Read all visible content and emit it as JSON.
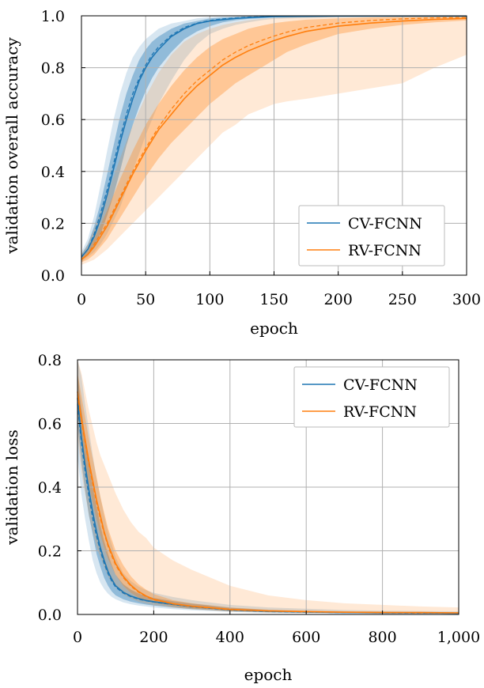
{
  "colors": {
    "cv": "#1f77b4",
    "rv": "#ff7f0e",
    "grid": "#b0b0b0"
  },
  "chart_data": [
    {
      "type": "line",
      "xlabel": "epoch",
      "ylabel": "validation overall accuracy",
      "xlim": [
        0,
        300
      ],
      "ylim": [
        0,
        1.0
      ],
      "xticks": [
        0,
        50,
        100,
        150,
        200,
        250,
        300
      ],
      "yticks": [
        0.0,
        0.2,
        0.4,
        0.6,
        0.8,
        1.0
      ],
      "xtick_labels": [
        "0",
        "50",
        "100",
        "150",
        "200",
        "250",
        "300"
      ],
      "ytick_labels": [
        "0.0",
        "0.2",
        "0.4",
        "0.6",
        "0.8",
        "1.0"
      ],
      "grid": true,
      "legend_position": "bottom-right",
      "series": [
        {
          "name": "CV-FCNN",
          "color": "#1f77b4",
          "x": [
            0,
            5,
            10,
            15,
            20,
            25,
            30,
            35,
            40,
            45,
            50,
            55,
            60,
            70,
            80,
            90,
            100,
            110,
            120,
            130,
            140,
            150,
            175,
            200,
            250,
            300
          ],
          "y": [
            0.07,
            0.1,
            0.15,
            0.22,
            0.31,
            0.41,
            0.51,
            0.6,
            0.68,
            0.75,
            0.8,
            0.84,
            0.87,
            0.92,
            0.95,
            0.97,
            0.98,
            0.985,
            0.99,
            0.993,
            0.995,
            0.997,
            0.998,
            0.999,
            0.999,
            0.999
          ],
          "std_lower": [
            0.06,
            0.08,
            0.11,
            0.16,
            0.23,
            0.31,
            0.4,
            0.5,
            0.58,
            0.65,
            0.71,
            0.76,
            0.8,
            0.86,
            0.91,
            0.94,
            0.96,
            0.975,
            0.983,
            0.988,
            0.991,
            0.994,
            0.996,
            0.997,
            0.998,
            0.998
          ],
          "std_upper": [
            0.08,
            0.12,
            0.19,
            0.28,
            0.39,
            0.5,
            0.61,
            0.7,
            0.77,
            0.83,
            0.87,
            0.9,
            0.92,
            0.95,
            0.97,
            0.98,
            0.99,
            0.993,
            0.995,
            0.997,
            0.998,
            0.999,
            0.999,
            1.0,
            1.0,
            1.0
          ],
          "min": [
            0.05,
            0.07,
            0.09,
            0.12,
            0.16,
            0.21,
            0.26,
            0.33,
            0.4,
            0.47,
            0.54,
            0.6,
            0.66,
            0.75,
            0.83,
            0.89,
            0.93,
            0.95,
            0.965,
            0.975,
            0.983,
            0.988,
            0.992,
            0.995,
            0.997,
            0.997
          ],
          "max": [
            0.09,
            0.14,
            0.23,
            0.35,
            0.48,
            0.6,
            0.7,
            0.78,
            0.84,
            0.88,
            0.91,
            0.93,
            0.95,
            0.97,
            0.98,
            0.99,
            0.995,
            0.997,
            0.998,
            0.999,
            1.0,
            1.0,
            1.0,
            1.0,
            1.0,
            1.0
          ],
          "dashed": [
            0.07,
            0.1,
            0.16,
            0.24,
            0.33,
            0.43,
            0.53,
            0.62,
            0.7,
            0.76,
            0.81,
            0.85,
            0.88,
            0.925,
            0.955,
            0.972,
            0.982,
            0.988,
            0.992,
            0.995,
            0.996,
            0.998,
            0.999,
            0.999,
            0.999,
            0.999
          ]
        },
        {
          "name": "RV-FCNN",
          "color": "#ff7f0e",
          "x": [
            0,
            5,
            10,
            20,
            30,
            40,
            50,
            60,
            70,
            80,
            90,
            100,
            110,
            120,
            130,
            140,
            150,
            160,
            175,
            200,
            225,
            250,
            275,
            300
          ],
          "y": [
            0.06,
            0.08,
            0.11,
            0.19,
            0.29,
            0.39,
            0.48,
            0.56,
            0.62,
            0.68,
            0.73,
            0.77,
            0.81,
            0.84,
            0.865,
            0.885,
            0.905,
            0.92,
            0.94,
            0.96,
            0.972,
            0.98,
            0.986,
            0.99
          ],
          "std_lower": [
            0.05,
            0.06,
            0.08,
            0.14,
            0.22,
            0.3,
            0.38,
            0.45,
            0.51,
            0.56,
            0.61,
            0.66,
            0.7,
            0.74,
            0.77,
            0.8,
            0.83,
            0.86,
            0.89,
            0.93,
            0.95,
            0.965,
            0.975,
            0.982
          ],
          "std_upper": [
            0.07,
            0.1,
            0.14,
            0.25,
            0.37,
            0.48,
            0.58,
            0.66,
            0.73,
            0.79,
            0.84,
            0.88,
            0.91,
            0.93,
            0.95,
            0.962,
            0.972,
            0.978,
            0.985,
            0.99,
            0.994,
            0.996,
            0.997,
            0.998
          ],
          "min": [
            0.04,
            0.05,
            0.06,
            0.1,
            0.15,
            0.2,
            0.25,
            0.3,
            0.35,
            0.4,
            0.45,
            0.5,
            0.55,
            0.58,
            0.62,
            0.64,
            0.66,
            0.67,
            0.68,
            0.7,
            0.72,
            0.74,
            0.8,
            0.85
          ],
          "max": [
            0.08,
            0.12,
            0.18,
            0.31,
            0.45,
            0.58,
            0.69,
            0.78,
            0.85,
            0.9,
            0.93,
            0.95,
            0.965,
            0.975,
            0.983,
            0.988,
            0.992,
            0.995,
            0.997,
            0.999,
            1.0,
            1.0,
            1.0,
            1.0
          ],
          "dashed": [
            0.06,
            0.08,
            0.12,
            0.2,
            0.3,
            0.4,
            0.49,
            0.57,
            0.64,
            0.7,
            0.75,
            0.79,
            0.83,
            0.86,
            0.885,
            0.905,
            0.922,
            0.937,
            0.955,
            0.972,
            0.982,
            0.988,
            0.992,
            0.994
          ]
        }
      ]
    },
    {
      "type": "line",
      "xlabel": "epoch",
      "ylabel": "validation loss",
      "xlim": [
        0,
        1000
      ],
      "ylim": [
        0,
        0.8
      ],
      "xticks": [
        0,
        200,
        400,
        600,
        800,
        1000
      ],
      "yticks": [
        0.0,
        0.2,
        0.4,
        0.6,
        0.8
      ],
      "xtick_labels": [
        "0",
        "200",
        "400",
        "600",
        "800",
        "1,000"
      ],
      "ytick_labels": [
        "0.0",
        "0.2",
        "0.4",
        "0.6",
        "0.8"
      ],
      "grid": true,
      "legend_position": "top-right",
      "series": [
        {
          "name": "CV-FCNN",
          "color": "#1f77b4",
          "x": [
            0,
            10,
            20,
            30,
            40,
            50,
            60,
            70,
            80,
            90,
            100,
            120,
            140,
            160,
            180,
            200,
            250,
            300,
            400,
            500,
            600,
            700,
            800,
            900,
            1000
          ],
          "y": [
            0.68,
            0.56,
            0.47,
            0.39,
            0.32,
            0.26,
            0.21,
            0.17,
            0.135,
            0.11,
            0.09,
            0.07,
            0.058,
            0.05,
            0.044,
            0.04,
            0.032,
            0.025,
            0.015,
            0.01,
            0.008,
            0.006,
            0.005,
            0.005,
            0.004
          ],
          "std_lower": [
            0.6,
            0.48,
            0.39,
            0.31,
            0.25,
            0.19,
            0.15,
            0.115,
            0.09,
            0.072,
            0.06,
            0.048,
            0.04,
            0.035,
            0.031,
            0.028,
            0.022,
            0.017,
            0.01,
            0.007,
            0.005,
            0.004,
            0.003,
            0.003,
            0.002
          ],
          "std_upper": [
            0.76,
            0.65,
            0.56,
            0.48,
            0.4,
            0.34,
            0.28,
            0.23,
            0.19,
            0.155,
            0.125,
            0.095,
            0.078,
            0.066,
            0.058,
            0.052,
            0.042,
            0.034,
            0.021,
            0.014,
            0.011,
            0.009,
            0.008,
            0.007,
            0.006
          ],
          "min": [
            0.5,
            0.38,
            0.3,
            0.23,
            0.17,
            0.13,
            0.1,
            0.08,
            0.065,
            0.055,
            0.048,
            0.038,
            0.032,
            0.028,
            0.025,
            0.022,
            0.017,
            0.013,
            0.008,
            0.005,
            0.004,
            0.003,
            0.002,
            0.002,
            0.002
          ],
          "max": [
            0.8,
            0.75,
            0.66,
            0.58,
            0.5,
            0.43,
            0.37,
            0.31,
            0.26,
            0.22,
            0.18,
            0.13,
            0.105,
            0.088,
            0.076,
            0.068,
            0.055,
            0.045,
            0.03,
            0.022,
            0.018,
            0.014,
            0.012,
            0.011,
            0.01
          ],
          "dashed": [
            0.66,
            0.54,
            0.45,
            0.37,
            0.3,
            0.245,
            0.2,
            0.16,
            0.128,
            0.104,
            0.086,
            0.067,
            0.056,
            0.048,
            0.043,
            0.039,
            0.031,
            0.024,
            0.014,
            0.009,
            0.007,
            0.006,
            0.005,
            0.004,
            0.004
          ]
        },
        {
          "name": "RV-FCNN",
          "color": "#ff7f0e",
          "x": [
            0,
            10,
            20,
            30,
            40,
            50,
            60,
            70,
            80,
            90,
            100,
            120,
            140,
            160,
            180,
            200,
            250,
            300,
            400,
            500,
            600,
            700,
            800,
            900,
            1000
          ],
          "y": [
            0.7,
            0.62,
            0.55,
            0.48,
            0.42,
            0.36,
            0.31,
            0.26,
            0.22,
            0.19,
            0.16,
            0.12,
            0.092,
            0.072,
            0.058,
            0.048,
            0.034,
            0.026,
            0.016,
            0.011,
            0.009,
            0.007,
            0.006,
            0.006,
            0.005
          ],
          "std_lower": [
            0.64,
            0.55,
            0.48,
            0.41,
            0.35,
            0.3,
            0.25,
            0.21,
            0.175,
            0.15,
            0.125,
            0.09,
            0.068,
            0.053,
            0.043,
            0.036,
            0.026,
            0.019,
            0.011,
            0.008,
            0.006,
            0.005,
            0.004,
            0.004,
            0.003
          ],
          "std_upper": [
            0.76,
            0.69,
            0.62,
            0.55,
            0.49,
            0.43,
            0.37,
            0.32,
            0.27,
            0.235,
            0.2,
            0.155,
            0.12,
            0.095,
            0.078,
            0.064,
            0.045,
            0.035,
            0.022,
            0.015,
            0.012,
            0.01,
            0.009,
            0.008,
            0.007
          ],
          "min": [
            0.56,
            0.45,
            0.38,
            0.31,
            0.26,
            0.21,
            0.18,
            0.15,
            0.12,
            0.1,
            0.085,
            0.063,
            0.05,
            0.04,
            0.034,
            0.029,
            0.021,
            0.016,
            0.009,
            0.006,
            0.005,
            0.004,
            0.003,
            0.003,
            0.002
          ],
          "max": [
            0.8,
            0.76,
            0.7,
            0.64,
            0.59,
            0.54,
            0.5,
            0.47,
            0.44,
            0.41,
            0.38,
            0.33,
            0.29,
            0.26,
            0.24,
            0.21,
            0.17,
            0.14,
            0.09,
            0.06,
            0.045,
            0.035,
            0.03,
            0.025,
            0.022
          ],
          "dashed": [
            0.69,
            0.61,
            0.54,
            0.47,
            0.41,
            0.35,
            0.3,
            0.255,
            0.215,
            0.183,
            0.155,
            0.116,
            0.089,
            0.07,
            0.056,
            0.046,
            0.033,
            0.025,
            0.015,
            0.011,
            0.008,
            0.007,
            0.006,
            0.005,
            0.005
          ]
        }
      ]
    }
  ]
}
